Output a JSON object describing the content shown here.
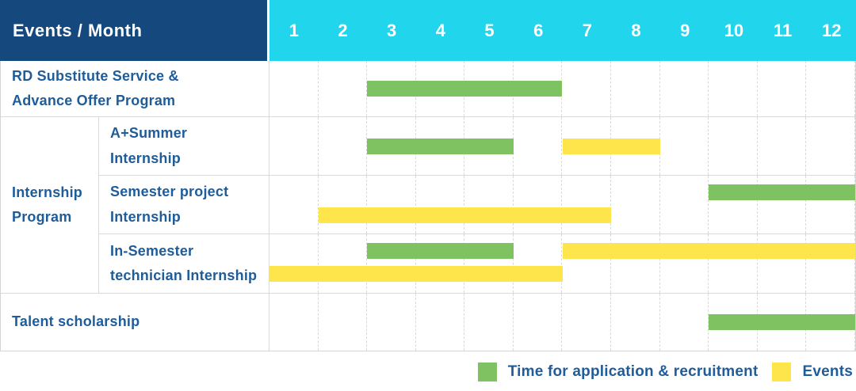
{
  "header": {
    "label_cell": "Events / Month"
  },
  "colors": {
    "header_bg": "#15497E",
    "months_bg": "#21D6EC",
    "application_green": "#7FC261",
    "events_yellow": "#FFE54C",
    "label_text": "#1E5C9A",
    "grid_line": "#D9D9D9"
  },
  "legend": [
    {
      "label": "Time for application & recruitment",
      "swatch": "application_green"
    },
    {
      "label": "Events",
      "swatch": "events_yellow"
    }
  ],
  "chart_data": {
    "type": "gantt",
    "title": "Events / Month",
    "months": [
      "1",
      "2",
      "3",
      "4",
      "5",
      "6",
      "7",
      "8",
      "9",
      "10",
      "11",
      "12"
    ],
    "x_range": [
      1,
      12
    ],
    "grid": true,
    "legend_position": "bottom-right",
    "series_meaning": {
      "green": "Time for application & recruitment",
      "yellow": "Events"
    },
    "rows": [
      {
        "name": "rd-substitute-service",
        "layout": "full",
        "label": "RD Substitute Service &\nAdvance Offer Program",
        "bars": [
          {
            "color": "green",
            "start": 3,
            "end": 6,
            "lane": "single"
          }
        ]
      },
      {
        "name": "internship-program",
        "layout": "group",
        "group_label": "Internship\nProgram",
        "sub_rows": [
          {
            "name": "a-plus-summer-internship",
            "label": "A+Summer\nInternship",
            "bars": [
              {
                "color": "green",
                "start": 3,
                "end": 5,
                "lane": "single"
              },
              {
                "color": "yellow",
                "start": 7,
                "end": 8,
                "lane": "single"
              }
            ]
          },
          {
            "name": "semester-project-internship",
            "label": "Semester project\nInternship",
            "bars": [
              {
                "color": "green",
                "start": 10,
                "end": 12,
                "lane": "top"
              },
              {
                "color": "yellow",
                "start": 2,
                "end": 7,
                "lane": "bottom"
              }
            ]
          },
          {
            "name": "in-semester-technician-internship",
            "label": "In-Semester\ntechnician Internship",
            "bars": [
              {
                "color": "green",
                "start": 3,
                "end": 5,
                "lane": "top"
              },
              {
                "color": "yellow",
                "start": 7,
                "end": 12,
                "lane": "top"
              },
              {
                "color": "yellow",
                "start": 1,
                "end": 6,
                "lane": "bottom"
              }
            ]
          }
        ]
      },
      {
        "name": "talent-scholarship",
        "layout": "full",
        "label": "Talent scholarship",
        "bars": [
          {
            "color": "green",
            "start": 10,
            "end": 12,
            "lane": "single"
          }
        ]
      }
    ]
  }
}
